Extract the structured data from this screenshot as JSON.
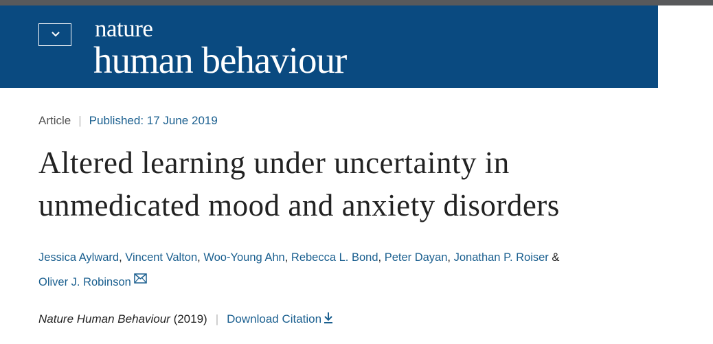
{
  "header": {
    "brand_small": "nature",
    "brand_large": "human behaviour"
  },
  "article": {
    "type": "Article",
    "published": "Published: 17 June 2019",
    "title": "Altered learning under uncertainty in unmedicated mood and anxiety disorders",
    "author_separator": ",",
    "author_conjunction": "&",
    "authors": [
      "Jessica Aylward",
      "Vincent Valton",
      "Woo-Young Ahn",
      "Rebecca L. Bond",
      "Peter Dayan",
      "Jonathan P. Roiser",
      "Oliver J. Robinson"
    ],
    "citation": {
      "journal": "Nature Human Behaviour",
      "year": "(2019)",
      "download": "Download Citation"
    }
  }
}
